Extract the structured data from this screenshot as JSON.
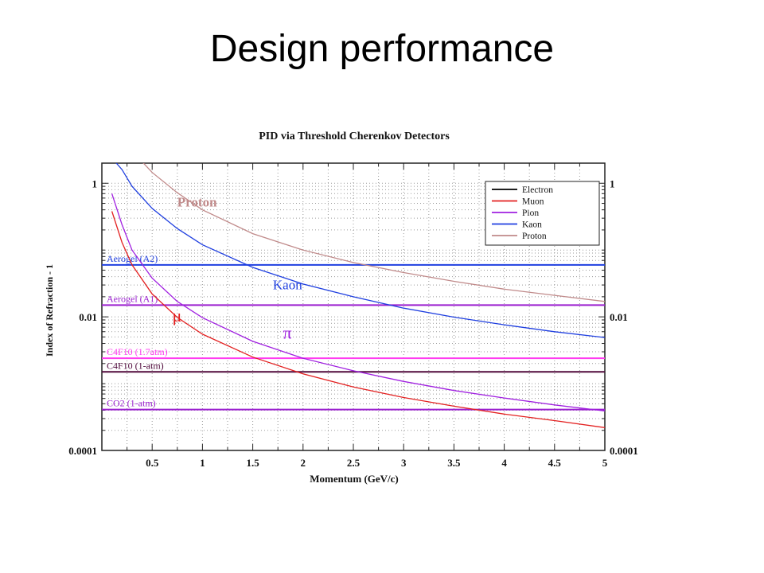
{
  "slide": {
    "title": "Design performance"
  },
  "chart_data": {
    "type": "line",
    "title": "PID via Threshold Cherenkov Detectors",
    "xlabel": "Momentum (GeV/c)",
    "ylabel": "Index of Refraction - 1",
    "xlim": [
      0,
      5
    ],
    "ylim": [
      0.0001,
      2
    ],
    "yscale": "log",
    "grid": true,
    "legend_position": "top-right",
    "x_ticks": [
      {
        "value": 0.5,
        "label": "0.5"
      },
      {
        "value": 1,
        "label": "1"
      },
      {
        "value": 1.5,
        "label": "1.5"
      },
      {
        "value": 2,
        "label": "2"
      },
      {
        "value": 2.5,
        "label": "2.5"
      },
      {
        "value": 3,
        "label": "3"
      },
      {
        "value": 3.5,
        "label": "3.5"
      },
      {
        "value": 4,
        "label": "4"
      },
      {
        "value": 4.5,
        "label": "4.5"
      },
      {
        "value": 5,
        "label": "5"
      }
    ],
    "y_ticks": [
      {
        "value": 1,
        "label": "1"
      },
      {
        "value": 0.01,
        "label": "0.01"
      },
      {
        "value": 0.0001,
        "label": "0.0001"
      }
    ],
    "series": [
      {
        "name": "Electron",
        "color": "#000000",
        "x": [],
        "y": []
      },
      {
        "name": "Muon",
        "color": "#e32020",
        "x": [
          0.1,
          0.2,
          0.3,
          0.5,
          0.75,
          1,
          1.5,
          2,
          2.5,
          3,
          3.5,
          4,
          4.5,
          5
        ],
        "y": [
          0.38,
          0.13,
          0.06,
          0.022,
          0.0098,
          0.0055,
          0.0025,
          0.0014,
          0.00089,
          0.00062,
          0.00046,
          0.00035,
          0.00028,
          0.00022
        ]
      },
      {
        "name": "Pion",
        "color": "#a020e0",
        "x": [
          0.1,
          0.2,
          0.3,
          0.5,
          0.75,
          1,
          1.5,
          2,
          2.5,
          3,
          3.5,
          4,
          4.5,
          5
        ],
        "y": [
          0.7,
          0.24,
          0.1,
          0.038,
          0.017,
          0.0097,
          0.0043,
          0.0024,
          0.00156,
          0.00108,
          0.00079,
          0.00061,
          0.00048,
          0.00039
        ]
      },
      {
        "name": "Kaon",
        "color": "#1f3fe0",
        "x": [
          0.12,
          0.2,
          0.3,
          0.5,
          0.75,
          1,
          1.5,
          2,
          2.5,
          3,
          3.5,
          4,
          4.5,
          5
        ],
        "y": [
          2.2,
          1.6,
          0.9,
          0.42,
          0.21,
          0.12,
          0.055,
          0.031,
          0.02,
          0.0135,
          0.0099,
          0.0076,
          0.006,
          0.0049
        ]
      },
      {
        "name": "Proton",
        "color": "#c08a8a",
        "x": [
          0.4,
          0.5,
          0.75,
          1,
          1.5,
          2,
          2.5,
          3,
          3.5,
          4,
          4.5,
          5
        ],
        "y": [
          2.1,
          1.45,
          0.72,
          0.4,
          0.176,
          0.1,
          0.065,
          0.046,
          0.034,
          0.026,
          0.021,
          0.017
        ]
      }
    ],
    "threshold_lines": [
      {
        "label": "Aerogel (A2)",
        "y": 0.06,
        "color": "#1f3fe0"
      },
      {
        "label": "Aerogel (A1)",
        "y": 0.015,
        "color": "#9a1fcf"
      },
      {
        "label": "C4F10 (1.7atm)",
        "y": 0.0024,
        "color": "#ff3cf0"
      },
      {
        "label": "C4F10 (1-atm)",
        "y": 0.0015,
        "color": "#500a3c"
      },
      {
        "label": "CO2 (1-atm)",
        "y": 0.00041,
        "color": "#9a1fcf"
      }
    ],
    "annotations": [
      {
        "text": "Proton",
        "x": 0.75,
        "y": 0.45,
        "color": "#c08a8a"
      },
      {
        "text": "Kaon",
        "x": 1.7,
        "y": 0.026,
        "color": "#1f3fe0"
      },
      {
        "text": "μ",
        "x": 0.7,
        "y": 0.0085,
        "color": "#e32020"
      },
      {
        "text": "π",
        "x": 1.8,
        "y": 0.0047,
        "color": "#a020e0"
      }
    ]
  }
}
